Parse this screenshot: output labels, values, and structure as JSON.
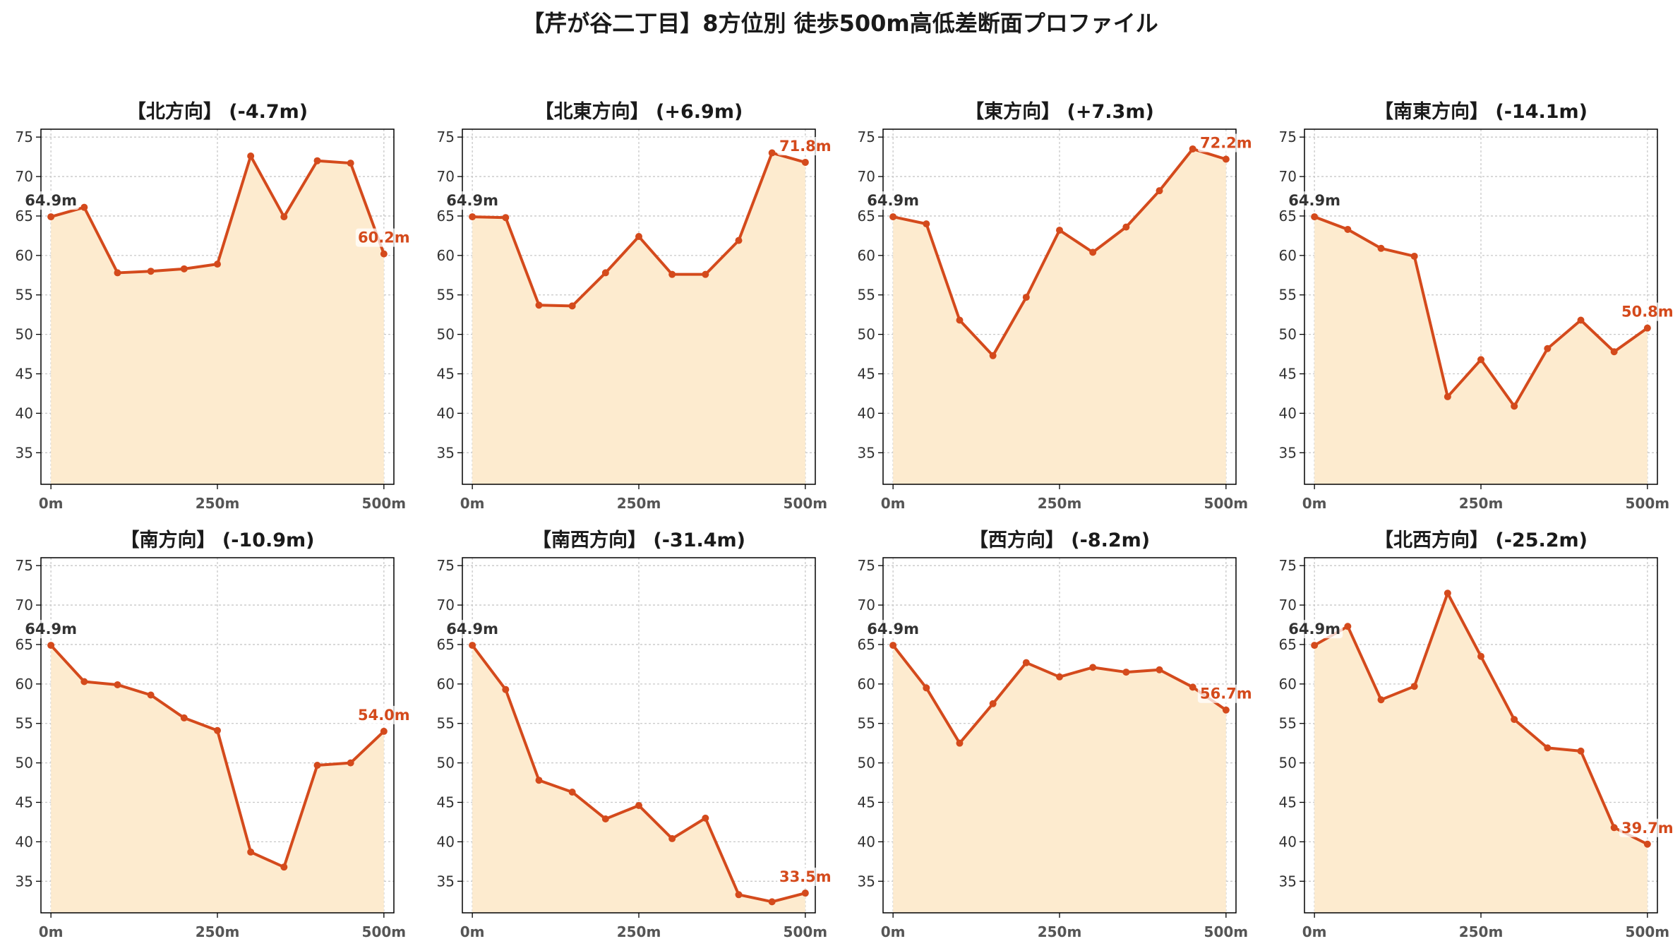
{
  "title": "【芹が谷二丁目】8方位別 徒歩500m高低差断面プロファイル",
  "colors": {
    "line": "#d44a1c",
    "fill": "#fdebcf",
    "start_label": "#333333",
    "end_label": "#d44a1c",
    "grid": "#c8c8c8",
    "axis": "#000000"
  },
  "chart_data": [
    {
      "type": "area",
      "title": "【北方向】 (-4.7m)",
      "x": [
        0,
        50,
        100,
        150,
        200,
        250,
        300,
        350,
        400,
        450,
        500
      ],
      "y": [
        64.9,
        66.1,
        57.8,
        58.0,
        58.3,
        58.9,
        72.6,
        64.9,
        72.0,
        71.7,
        60.2
      ],
      "start_label": "64.9m",
      "end_label": "60.2m",
      "xticks": [
        "0m",
        "250m",
        "500m"
      ],
      "xtick_values": [
        0,
        250,
        500
      ],
      "yticks": [
        35,
        40,
        45,
        50,
        55,
        60,
        65,
        70,
        75
      ],
      "ylim": [
        31,
        76
      ],
      "xlim": [
        -15,
        515
      ],
      "grid": true
    },
    {
      "type": "area",
      "title": "【北東方向】 (+6.9m)",
      "x": [
        0,
        50,
        100,
        150,
        200,
        250,
        300,
        350,
        400,
        450,
        500
      ],
      "y": [
        64.9,
        64.8,
        53.7,
        53.6,
        57.8,
        62.4,
        57.6,
        57.6,
        61.9,
        73.0,
        71.8
      ],
      "start_label": "64.9m",
      "end_label": "71.8m",
      "xticks": [
        "0m",
        "250m",
        "500m"
      ],
      "xtick_values": [
        0,
        250,
        500
      ],
      "yticks": [
        35,
        40,
        45,
        50,
        55,
        60,
        65,
        70,
        75
      ],
      "ylim": [
        31,
        76
      ],
      "xlim": [
        -15,
        515
      ],
      "grid": true
    },
    {
      "type": "area",
      "title": "【東方向】 (+7.3m)",
      "x": [
        0,
        50,
        100,
        150,
        200,
        250,
        300,
        350,
        400,
        450,
        500
      ],
      "y": [
        64.9,
        64.0,
        51.8,
        47.3,
        54.7,
        63.2,
        60.4,
        63.6,
        68.2,
        73.5,
        72.2
      ],
      "start_label": "64.9m",
      "end_label": "72.2m",
      "xticks": [
        "0m",
        "250m",
        "500m"
      ],
      "xtick_values": [
        0,
        250,
        500
      ],
      "yticks": [
        35,
        40,
        45,
        50,
        55,
        60,
        65,
        70,
        75
      ],
      "ylim": [
        31,
        76
      ],
      "xlim": [
        -15,
        515
      ],
      "grid": true
    },
    {
      "type": "area",
      "title": "【南東方向】 (-14.1m)",
      "x": [
        0,
        50,
        100,
        150,
        200,
        250,
        300,
        350,
        400,
        450,
        500
      ],
      "y": [
        64.9,
        63.3,
        60.9,
        59.9,
        42.1,
        46.8,
        40.9,
        48.2,
        51.8,
        47.8,
        50.8
      ],
      "start_label": "64.9m",
      "end_label": "50.8m",
      "xticks": [
        "0m",
        "250m",
        "500m"
      ],
      "xtick_values": [
        0,
        250,
        500
      ],
      "yticks": [
        35,
        40,
        45,
        50,
        55,
        60,
        65,
        70,
        75
      ],
      "ylim": [
        31,
        76
      ],
      "xlim": [
        -15,
        515
      ],
      "grid": true
    },
    {
      "type": "area",
      "title": "【南方向】 (-10.9m)",
      "x": [
        0,
        50,
        100,
        150,
        200,
        250,
        300,
        350,
        400,
        450,
        500
      ],
      "y": [
        64.9,
        60.3,
        59.9,
        58.6,
        55.7,
        54.1,
        38.7,
        36.8,
        49.7,
        50.0,
        54.0
      ],
      "start_label": "64.9m",
      "end_label": "54.0m",
      "xticks": [
        "0m",
        "250m",
        "500m"
      ],
      "xtick_values": [
        0,
        250,
        500
      ],
      "yticks": [
        35,
        40,
        45,
        50,
        55,
        60,
        65,
        70,
        75
      ],
      "ylim": [
        31,
        76
      ],
      "xlim": [
        -15,
        515
      ],
      "grid": true
    },
    {
      "type": "area",
      "title": "【南西方向】 (-31.4m)",
      "x": [
        0,
        50,
        100,
        150,
        200,
        250,
        300,
        350,
        400,
        450,
        500
      ],
      "y": [
        64.9,
        59.3,
        47.8,
        46.3,
        42.9,
        44.6,
        40.4,
        43.0,
        33.3,
        32.4,
        33.5
      ],
      "start_label": "64.9m",
      "end_label": "33.5m",
      "xticks": [
        "0m",
        "250m",
        "500m"
      ],
      "xtick_values": [
        0,
        250,
        500
      ],
      "yticks": [
        35,
        40,
        45,
        50,
        55,
        60,
        65,
        70,
        75
      ],
      "ylim": [
        31,
        76
      ],
      "xlim": [
        -15,
        515
      ],
      "grid": true
    },
    {
      "type": "area",
      "title": "【西方向】 (-8.2m)",
      "x": [
        0,
        50,
        100,
        150,
        200,
        250,
        300,
        350,
        400,
        450,
        500
      ],
      "y": [
        64.9,
        59.5,
        52.5,
        57.5,
        62.7,
        60.9,
        62.1,
        61.5,
        61.8,
        59.6,
        56.7
      ],
      "start_label": "64.9m",
      "end_label": "56.7m",
      "xticks": [
        "0m",
        "250m",
        "500m"
      ],
      "xtick_values": [
        0,
        250,
        500
      ],
      "yticks": [
        35,
        40,
        45,
        50,
        55,
        60,
        65,
        70,
        75
      ],
      "ylim": [
        31,
        76
      ],
      "xlim": [
        -15,
        515
      ],
      "grid": true
    },
    {
      "type": "area",
      "title": "【北西方向】 (-25.2m)",
      "x": [
        0,
        50,
        100,
        150,
        200,
        250,
        300,
        350,
        400,
        450,
        500
      ],
      "y": [
        64.9,
        67.3,
        58.0,
        59.7,
        71.5,
        63.5,
        55.5,
        51.9,
        51.5,
        41.8,
        39.7
      ],
      "start_label": "64.9m",
      "end_label": "39.7m",
      "xticks": [
        "0m",
        "250m",
        "500m"
      ],
      "xtick_values": [
        0,
        250,
        500
      ],
      "yticks": [
        35,
        40,
        45,
        50,
        55,
        60,
        65,
        70,
        75
      ],
      "ylim": [
        31,
        76
      ],
      "xlim": [
        -15,
        515
      ],
      "grid": true
    }
  ]
}
